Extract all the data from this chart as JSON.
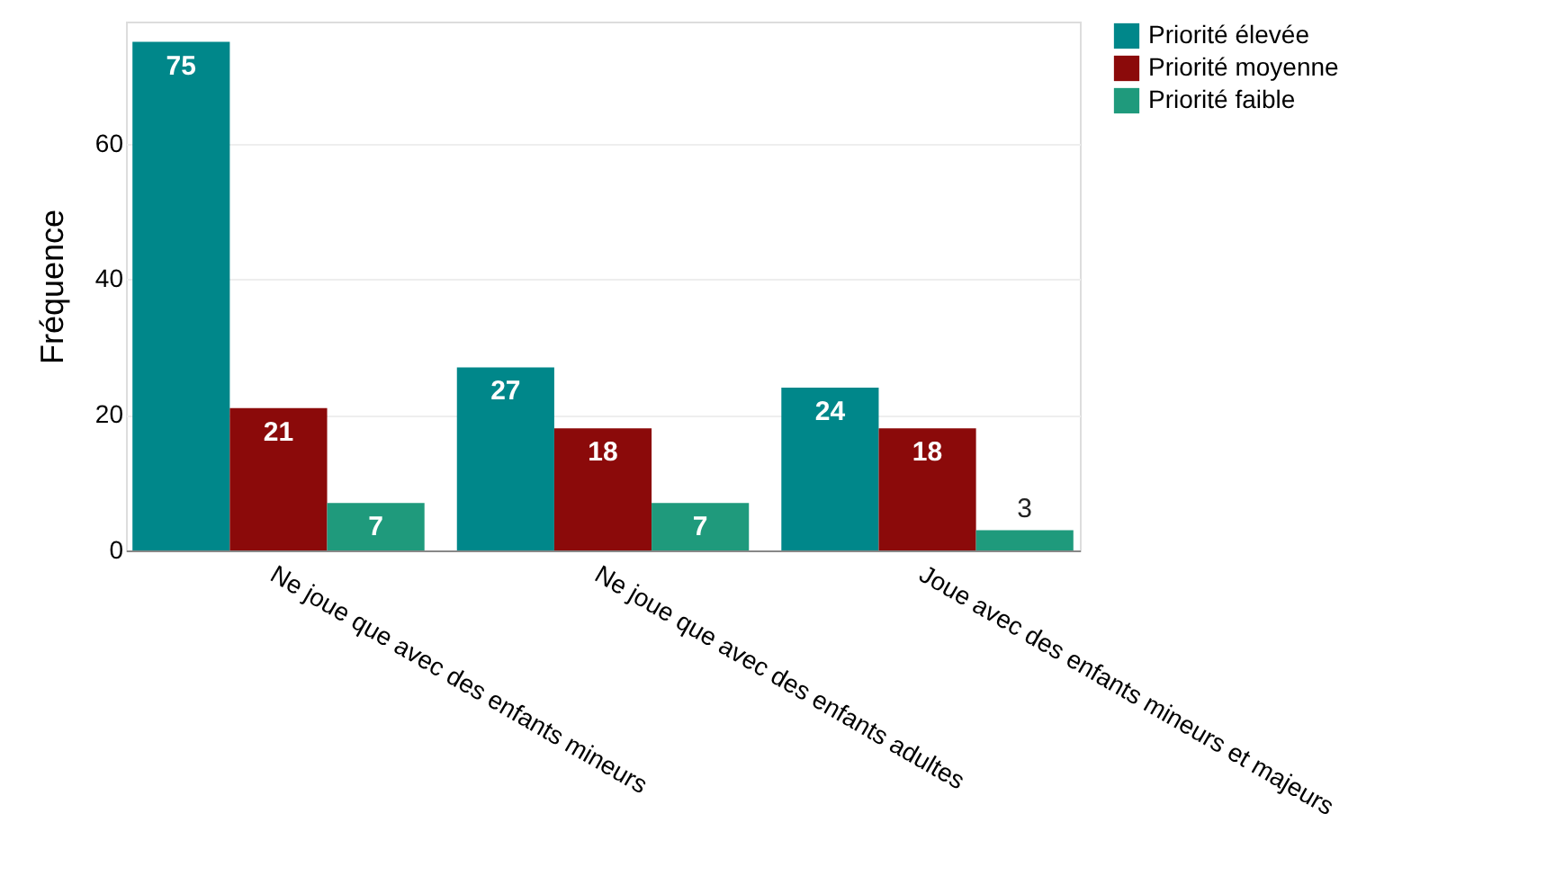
{
  "chart_data": {
    "type": "bar",
    "ylabel": "Fréquence",
    "categories": [
      "Ne joue que avec des enfants mineurs",
      "Ne joue que avec des enfants adultes",
      "Joue avec des enfants mineurs et majeurs"
    ],
    "series": [
      {
        "name": "Priorité élevée",
        "color": "#00878a",
        "values": [
          75,
          27,
          24
        ]
      },
      {
        "name": "Priorité moyenne",
        "color": "#8b0a0a",
        "values": [
          21,
          18,
          18
        ]
      },
      {
        "name": "Priorité faible",
        "color": "#1f9a7c",
        "values": [
          7,
          7,
          3
        ]
      }
    ],
    "ylim": [
      0,
      78
    ],
    "yticks": [
      0,
      20,
      40,
      60
    ],
    "grid": "y",
    "legend": "top right",
    "data_labels": true
  }
}
